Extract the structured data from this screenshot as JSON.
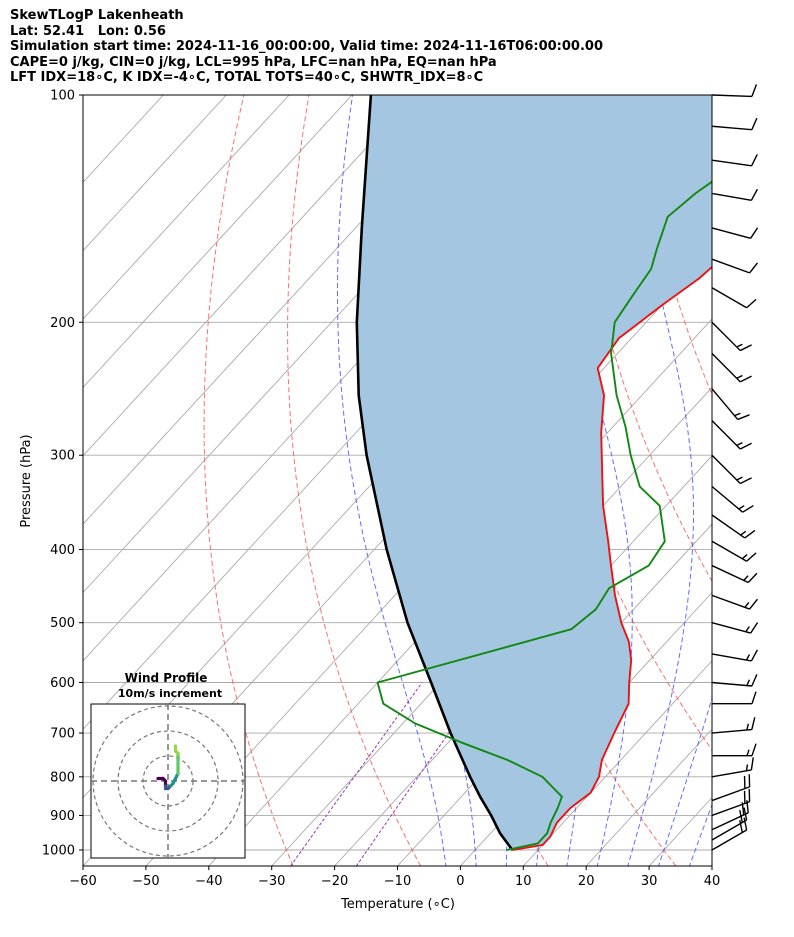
{
  "titles": [
    "SkewTLogP Lakenheath",
    "Lat: 52.41   Lon: 0.56",
    "Simulation start time: 2024-11-16_00:00:00, Valid time: 2024-11-16T06:00:00.00",
    "CAPE=0 j/kg, CIN=0 j/kg, LCL=995 hPa, LFC=nan hPa, EQ=nan hPa",
    "LFT IDX=18∘C, K IDX=-4∘C, TOTAL TOTS=40∘C, SHWTR_IDX=8∘C"
  ],
  "colors": {
    "temperature": "#ee1111",
    "dewpoint": "#118811",
    "parcel": "#000000",
    "cape_fill": "#a4c6e0",
    "dry_adiabat": "#ff5555",
    "moist_adiabat": "#4455ff",
    "mixing_ratio": "#9933bb",
    "isotherm": "#aaaaaa",
    "isobar": "#aaaaaa"
  },
  "chart_data": [
    {
      "type": "line",
      "name": "skew-t-log-p",
      "xlabel": "Temperature (∘C)",
      "ylabel": "Pressure (hPa)",
      "xlim": [
        -60,
        40
      ],
      "ylim": [
        1050,
        100
      ],
      "y_scale": "log",
      "x_ticks": [
        "−60",
        "−50",
        "−40",
        "−30",
        "−20",
        "−10",
        "0",
        "10",
        "20",
        "30",
        "40"
      ],
      "y_ticks": [
        "1000",
        "900",
        "800",
        "700",
        "600",
        "500",
        "400",
        "300",
        "200",
        "100"
      ],
      "grid": true,
      "temperature_profile": [
        {
          "p": 1000,
          "t": 6
        },
        {
          "p": 985,
          "t": 10
        },
        {
          "p": 960,
          "t": 10
        },
        {
          "p": 920,
          "t": 9
        },
        {
          "p": 880,
          "t": 9
        },
        {
          "p": 840,
          "t": 10
        },
        {
          "p": 800,
          "t": 9
        },
        {
          "p": 760,
          "t": 7
        },
        {
          "p": 700,
          "t": 5
        },
        {
          "p": 640,
          "t": 3
        },
        {
          "p": 600,
          "t": 0
        },
        {
          "p": 560,
          "t": -3
        },
        {
          "p": 530,
          "t": -6
        },
        {
          "p": 500,
          "t": -10
        },
        {
          "p": 460,
          "t": -15
        },
        {
          "p": 420,
          "t": -20
        },
        {
          "p": 390,
          "t": -24
        },
        {
          "p": 350,
          "t": -30
        },
        {
          "p": 310,
          "t": -36
        },
        {
          "p": 280,
          "t": -41
        },
        {
          "p": 250,
          "t": -46
        },
        {
          "p": 230,
          "t": -51
        },
        {
          "p": 210,
          "t": -52
        },
        {
          "p": 200,
          "t": -51
        },
        {
          "p": 190,
          "t": -50
        },
        {
          "p": 175,
          "t": -48
        },
        {
          "p": 160,
          "t": -47
        },
        {
          "p": 150,
          "t": -46
        },
        {
          "p": 140,
          "t": -46
        },
        {
          "p": 125,
          "t": -46
        },
        {
          "p": 110,
          "t": -45
        },
        {
          "p": 100,
          "t": -44
        }
      ],
      "dewpoint_profile": [
        {
          "p": 1000,
          "t": 5
        },
        {
          "p": 980,
          "t": 9
        },
        {
          "p": 950,
          "t": 9
        },
        {
          "p": 920,
          "t": 8
        },
        {
          "p": 880,
          "t": 7
        },
        {
          "p": 850,
          "t": 6
        },
        {
          "p": 800,
          "t": 0
        },
        {
          "p": 760,
          "t": -8
        },
        {
          "p": 720,
          "t": -18
        },
        {
          "p": 680,
          "t": -28
        },
        {
          "p": 640,
          "t": -36
        },
        {
          "p": 600,
          "t": -40
        },
        {
          "p": 510,
          "t": -17
        },
        {
          "p": 480,
          "t": -16
        },
        {
          "p": 450,
          "t": -17
        },
        {
          "p": 420,
          "t": -14
        },
        {
          "p": 390,
          "t": -15
        },
        {
          "p": 350,
          "t": -21
        },
        {
          "p": 330,
          "t": -27
        },
        {
          "p": 300,
          "t": -33
        },
        {
          "p": 275,
          "t": -38
        },
        {
          "p": 250,
          "t": -44
        },
        {
          "p": 220,
          "t": -51
        },
        {
          "p": 200,
          "t": -55
        },
        {
          "p": 185,
          "t": -56
        },
        {
          "p": 170,
          "t": -57
        },
        {
          "p": 160,
          "t": -59
        },
        {
          "p": 145,
          "t": -62
        },
        {
          "p": 135,
          "t": -61
        },
        {
          "p": 120,
          "t": -58
        },
        {
          "p": 110,
          "t": -56
        },
        {
          "p": 100,
          "t": -53
        }
      ],
      "parcel_profile": [
        {
          "p": 1000,
          "t": 6
        },
        {
          "p": 995,
          "t": 5.5
        },
        {
          "p": 950,
          "t": 1.5
        },
        {
          "p": 900,
          "t": -2.5
        },
        {
          "p": 850,
          "t": -7
        },
        {
          "p": 800,
          "t": -11.5
        },
        {
          "p": 700,
          "t": -21
        },
        {
          "p": 600,
          "t": -31.5
        },
        {
          "p": 500,
          "t": -44
        },
        {
          "p": 400,
          "t": -58
        },
        {
          "p": 300,
          "t": -75
        },
        {
          "p": 250,
          "t": -85
        },
        {
          "p": 200,
          "t": -96
        },
        {
          "p": 150,
          "t": -109
        },
        {
          "p": 100,
          "t": -127
        }
      ],
      "wind_barbs": [
        {
          "p": 1000,
          "speed_kt": 20,
          "dir": 240
        },
        {
          "p": 970,
          "speed_kt": 20,
          "dir": 240
        },
        {
          "p": 940,
          "speed_kt": 20,
          "dir": 245
        },
        {
          "p": 900,
          "speed_kt": 20,
          "dir": 250
        },
        {
          "p": 860,
          "speed_kt": 20,
          "dir": 250
        },
        {
          "p": 800,
          "speed_kt": 15,
          "dir": 260
        },
        {
          "p": 750,
          "speed_kt": 15,
          "dir": 270
        },
        {
          "p": 700,
          "speed_kt": 15,
          "dir": 265
        },
        {
          "p": 640,
          "speed_kt": 10,
          "dir": 270
        },
        {
          "p": 600,
          "speed_kt": 15,
          "dir": 275
        },
        {
          "p": 550,
          "speed_kt": 15,
          "dir": 280
        },
        {
          "p": 500,
          "speed_kt": 15,
          "dir": 285
        },
        {
          "p": 460,
          "speed_kt": 15,
          "dir": 290
        },
        {
          "p": 420,
          "speed_kt": 15,
          "dir": 295
        },
        {
          "p": 390,
          "speed_kt": 15,
          "dir": 300
        },
        {
          "p": 360,
          "speed_kt": 15,
          "dir": 305
        },
        {
          "p": 330,
          "speed_kt": 15,
          "dir": 310
        },
        {
          "p": 300,
          "speed_kt": 15,
          "dir": 315
        },
        {
          "p": 270,
          "speed_kt": 15,
          "dir": 315
        },
        {
          "p": 245,
          "speed_kt": 15,
          "dir": 320
        },
        {
          "p": 220,
          "speed_kt": 15,
          "dir": 315
        },
        {
          "p": 200,
          "speed_kt": 15,
          "dir": 315
        },
        {
          "p": 180,
          "speed_kt": 10,
          "dir": 300
        },
        {
          "p": 165,
          "speed_kt": 10,
          "dir": 290
        },
        {
          "p": 150,
          "speed_kt": 10,
          "dir": 285
        },
        {
          "p": 135,
          "speed_kt": 10,
          "dir": 280
        },
        {
          "p": 122,
          "speed_kt": 10,
          "dir": 278
        },
        {
          "p": 110,
          "speed_kt": 10,
          "dir": 275
        },
        {
          "p": 100,
          "speed_kt": 10,
          "dir": 272
        }
      ]
    },
    {
      "type": "line",
      "name": "wind-profile-hodograph",
      "title": "Wind Profile",
      "subtitle": "10m/s increment",
      "rings": [
        10,
        20,
        30
      ],
      "points": [
        {
          "u": -4,
          "v": 1
        },
        {
          "u": -2,
          "v": 1
        },
        {
          "u": -1,
          "v": 0
        },
        {
          "u": -1,
          "v": -2
        },
        {
          "u": -1,
          "v": -3
        },
        {
          "u": 0,
          "v": -3
        },
        {
          "u": 1,
          "v": -2
        },
        {
          "u": 2,
          "v": -1
        },
        {
          "u": 3,
          "v": 1
        },
        {
          "u": 4,
          "v": 3
        },
        {
          "u": 4,
          "v": 6
        },
        {
          "u": 4,
          "v": 9
        },
        {
          "u": 4,
          "v": 11
        },
        {
          "u": 3,
          "v": 12
        },
        {
          "u": 3,
          "v": 14
        }
      ],
      "path_colors": [
        "#440154",
        "#3b528b",
        "#21918c",
        "#5ec962",
        "#8fd744"
      ]
    }
  ]
}
